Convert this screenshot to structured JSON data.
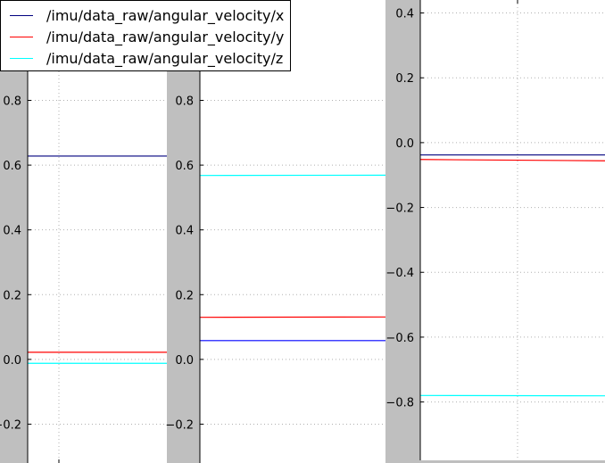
{
  "legend": {
    "items": [
      {
        "label": "/imu/data_raw/angular_velocity/x",
        "color": "#00007f"
      },
      {
        "label": "/imu/data_raw/angular_velocity/y",
        "color": "#ff0000"
      },
      {
        "label": "/imu/data_raw/angular_velocity/z",
        "color": "#00ffff"
      }
    ]
  },
  "chart_data": [
    {
      "type": "line",
      "title": "",
      "xlabel": "",
      "ylabel": "",
      "ylim": [
        -0.32,
        1.11
      ],
      "yticks": [
        -0.2,
        0.0,
        0.2,
        0.4,
        0.6,
        0.8
      ],
      "ytick_labels": [
        "−0.2",
        "0.0",
        "0.2",
        "0.4",
        "0.6",
        "0.8"
      ],
      "grid": true,
      "legend": "top-left",
      "series": [
        {
          "name": "/imu/data_raw/angular_velocity/x",
          "values": [
            0.628,
            0.628
          ],
          "color": "#00007f"
        },
        {
          "name": "/imu/data_raw/angular_velocity/y",
          "values": [
            0.022,
            0.022
          ],
          "color": "#ff0000"
        },
        {
          "name": "/imu/data_raw/angular_velocity/z",
          "values": [
            -0.012,
            -0.012
          ],
          "color": "#00ffff"
        }
      ]
    },
    {
      "type": "line",
      "title": "",
      "xlabel": "",
      "ylabel": "",
      "ylim": [
        -0.32,
        1.11
      ],
      "yticks": [
        -0.2,
        0.0,
        0.2,
        0.4,
        0.6,
        0.8
      ],
      "ytick_labels": [
        "−0.2",
        "0.0",
        "0.2",
        "0.4",
        "0.6",
        "0.8"
      ],
      "grid": true,
      "series": [
        {
          "name": "/imu/data_raw/angular_velocity/x",
          "values": [
            0.058,
            0.058
          ],
          "color": "#0000ff"
        },
        {
          "name": "/imu/data_raw/angular_velocity/y",
          "values": [
            0.13,
            0.131
          ],
          "color": "#ff0000"
        },
        {
          "name": "/imu/data_raw/angular_velocity/z",
          "values": [
            0.568,
            0.569
          ],
          "color": "#00ffff"
        }
      ]
    },
    {
      "type": "line",
      "title": "",
      "xlabel": "",
      "ylabel": "",
      "ylim": [
        -0.98,
        0.44
      ],
      "yticks": [
        -0.8,
        -0.6,
        -0.4,
        -0.2,
        0.0,
        0.2,
        0.4
      ],
      "ytick_labels": [
        "−0.8",
        "−0.6",
        "−0.4",
        "−0.2",
        "0.0",
        "0.2",
        "0.4"
      ],
      "grid": true,
      "series": [
        {
          "name": "/imu/data_raw/angular_velocity/x",
          "values": [
            -0.038,
            -0.038
          ],
          "color": "#00007f"
        },
        {
          "name": "/imu/data_raw/angular_velocity/y",
          "values": [
            -0.052,
            -0.056
          ],
          "color": "#ff0000"
        },
        {
          "name": "/imu/data_raw/angular_velocity/z",
          "values": [
            -0.78,
            -0.781
          ],
          "color": "#00ffff"
        }
      ]
    }
  ]
}
